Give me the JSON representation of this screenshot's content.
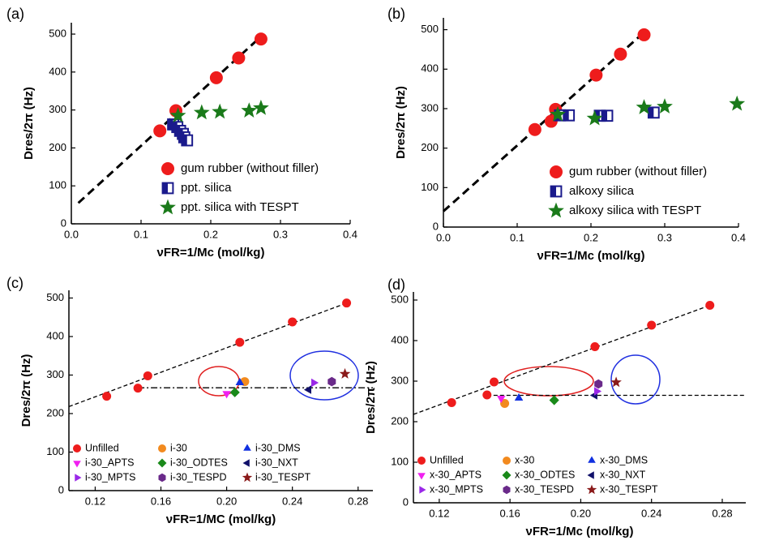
{
  "chart_data": [
    {
      "type": "scatter",
      "panel_label": "(a)",
      "xlabel": "νFR=1/Mc (mol/kg)",
      "ylabel": "Dres/2π (Hz)",
      "xlim": [
        0,
        0.4
      ],
      "ylim": [
        0,
        530
      ],
      "xticks": [
        {
          "value": 0,
          "label": "0.0"
        },
        0.1,
        0.2,
        0.3,
        0.4
      ],
      "yticks": [
        0,
        100,
        200,
        300,
        400,
        500
      ],
      "legend": "lower right",
      "series": [
        {
          "name": "gum rubber (without filler)",
          "color": "#ee1c1c",
          "marker": "circle",
          "x": [
            0.127,
            0.15,
            0.208,
            0.24,
            0.272
          ],
          "values": [
            245,
            298,
            385,
            437,
            487
          ]
        },
        {
          "name": "ppt. silica",
          "color": "#1a1a8c",
          "marker": "half-square",
          "x": [
            0.146,
            0.152,
            0.156,
            0.16,
            0.162,
            0.166
          ],
          "values": [
            262,
            255,
            245,
            237,
            228,
            220
          ]
        },
        {
          "name": "ppt. silica with TESPT",
          "color": "#1a7a1a",
          "marker": "star",
          "x": [
            0.153,
            0.187,
            0.213,
            0.255,
            0.272
          ],
          "values": [
            285,
            293,
            295,
            298,
            305
          ]
        }
      ],
      "lines": [
        {
          "style": "dashed",
          "x": [
            0.01,
            0.27
          ],
          "values": [
            55,
            490
          ]
        }
      ]
    },
    {
      "type": "scatter",
      "panel_label": "(b)",
      "xlabel": "νFR=1/Mc (mol/kg)",
      "ylabel": "Dres/2π (Hz)",
      "xlim": [
        0,
        0.4
      ],
      "ylim": [
        0,
        530
      ],
      "xticks": [
        {
          "value": 0,
          "label": "0.0"
        },
        0.1,
        0.2,
        0.3,
        0.4
      ],
      "yticks": [
        0,
        100,
        200,
        300,
        400,
        500
      ],
      "legend": "lower right",
      "series": [
        {
          "name": "gum rubber (without filler)",
          "color": "#ee1c1c",
          "marker": "circle",
          "x": [
            0.124,
            0.146,
            0.152,
            0.207,
            0.24,
            0.272
          ],
          "values": [
            247,
            268,
            298,
            385,
            438,
            487
          ]
        },
        {
          "name": "alkoxy silica",
          "color": "#1a1a8c",
          "marker": "half-square",
          "x": [
            0.158,
            0.17,
            0.212,
            0.222,
            0.285
          ],
          "values": [
            283,
            283,
            282,
            282,
            290
          ]
        },
        {
          "name": "alkoxy silica with TESPT",
          "color": "#1a7a1a",
          "marker": "star",
          "x": [
            0.155,
            0.205,
            0.272,
            0.3,
            0.398
          ],
          "values": [
            285,
            275,
            303,
            305,
            312
          ]
        }
      ],
      "lines": [
        {
          "style": "dashed",
          "x": [
            0,
            0.27
          ],
          "values": [
            40,
            490
          ]
        }
      ]
    },
    {
      "type": "scatter",
      "panel_label": "(c)",
      "xlabel": "νFR=1/MC (mol/kg)",
      "ylabel": "Dres/2π (Hz)",
      "xlim": [
        0.104,
        0.289
      ],
      "ylim": [
        0,
        520
      ],
      "xticks": [
        0.12,
        0.16,
        {
          "value": 0.2,
          "label": "0.20"
        },
        0.24,
        0.28
      ],
      "yticks": [
        0,
        100,
        200,
        300,
        400,
        500
      ],
      "legend": "lower left",
      "series": [
        {
          "name": "Unfilled",
          "color": "#ee1c1c",
          "marker": "circle",
          "x": [
            0.127,
            0.146,
            0.152,
            0.208,
            0.24,
            0.273
          ],
          "values": [
            245,
            266,
            298,
            385,
            438,
            487
          ]
        },
        {
          "name": "i-30",
          "color": "#f28a1e",
          "marker": "circle",
          "x": [
            0.211
          ],
          "values": [
            283
          ]
        },
        {
          "name": "i-30_DMS",
          "color": "#1030e0",
          "marker": "triangle-up",
          "x": [
            0.208
          ],
          "values": [
            280
          ]
        },
        {
          "name": "i-30_APTS",
          "color": "#f020f0",
          "marker": "triangle-down",
          "x": [
            0.2
          ],
          "values": [
            252
          ]
        },
        {
          "name": "i-30_ODTES",
          "color": "#1a8a1a",
          "marker": "diamond",
          "x": [
            0.205
          ],
          "values": [
            255
          ]
        },
        {
          "name": "i-30_NXT",
          "color": "#10106a",
          "marker": "triangle-left",
          "x": [
            0.25
          ],
          "values": [
            262
          ]
        },
        {
          "name": "i-30_MPTS",
          "color": "#9a28e8",
          "marker": "triangle-right",
          "x": [
            0.253
          ],
          "values": [
            280
          ]
        },
        {
          "name": "i-30_TESPD",
          "color": "#6a2a8a",
          "marker": "hexagon",
          "x": [
            0.264
          ],
          "values": [
            283
          ]
        },
        {
          "name": "i-30_TESPT",
          "color": "#8a1a1a",
          "marker": "star",
          "x": [
            0.272
          ],
          "values": [
            303
          ]
        }
      ],
      "lines": [
        {
          "style": "dashed",
          "x": [
            0.104,
            0.273
          ],
          "values": [
            218,
            487
          ]
        },
        {
          "style": "dashdot",
          "x": [
            0.146,
            0.289
          ],
          "values": [
            267,
            267
          ]
        }
      ]
    },
    {
      "type": "scatter",
      "panel_label": "(d)",
      "xlabel": "νFR=1/Mc (mol/kg)",
      "ylabel": "Dres/2π (Hz)",
      "xlim": [
        0.1054,
        0.2933
      ],
      "ylim": [
        0,
        520
      ],
      "xticks": [
        0.12,
        0.16,
        {
          "value": 0.2,
          "label": "0.20"
        },
        0.24,
        0.28
      ],
      "yticks": [
        0,
        100,
        200,
        300,
        400,
        500
      ],
      "legend": "lower left",
      "series": [
        {
          "name": "Unfilled",
          "color": "#ee1c1c",
          "marker": "circle",
          "x": [
            0.127,
            0.147,
            0.151,
            0.208,
            0.24,
            0.273
          ],
          "values": [
            247,
            266,
            298,
            385,
            438,
            487
          ]
        },
        {
          "name": "x-30",
          "color": "#f28a1e",
          "marker": "circle",
          "x": [
            0.157
          ],
          "values": [
            245
          ]
        },
        {
          "name": "x-30_DMS",
          "color": "#1030e0",
          "marker": "triangle-up",
          "x": [
            0.165
          ],
          "values": [
            258
          ]
        },
        {
          "name": "x-30_APTS",
          "color": "#f020f0",
          "marker": "triangle-down",
          "x": [
            0.155
          ],
          "values": [
            258
          ]
        },
        {
          "name": "x-30_ODTES",
          "color": "#1a8a1a",
          "marker": "diamond",
          "x": [
            0.185
          ],
          "values": [
            253
          ]
        },
        {
          "name": "x-30_NXT",
          "color": "#10106a",
          "marker": "triangle-left",
          "x": [
            0.208
          ],
          "values": [
            265
          ]
        },
        {
          "name": "x-30_MPTS",
          "color": "#9a28e8",
          "marker": "triangle-right",
          "x": [
            0.209
          ],
          "values": [
            275
          ]
        },
        {
          "name": "x-30_TESPD",
          "color": "#6a2a8a",
          "marker": "hexagon",
          "x": [
            0.21
          ],
          "values": [
            293
          ]
        },
        {
          "name": "x-30_TESPT",
          "color": "#8a1a1a",
          "marker": "star",
          "x": [
            0.22
          ],
          "values": [
            297
          ]
        }
      ],
      "lines": [
        {
          "style": "dashed",
          "x": [
            0.1054,
            0.273
          ],
          "values": [
            218,
            487
          ]
        },
        {
          "style": "dashed",
          "x": [
            0.147,
            0.293
          ],
          "values": [
            265,
            265
          ]
        }
      ]
    }
  ]
}
